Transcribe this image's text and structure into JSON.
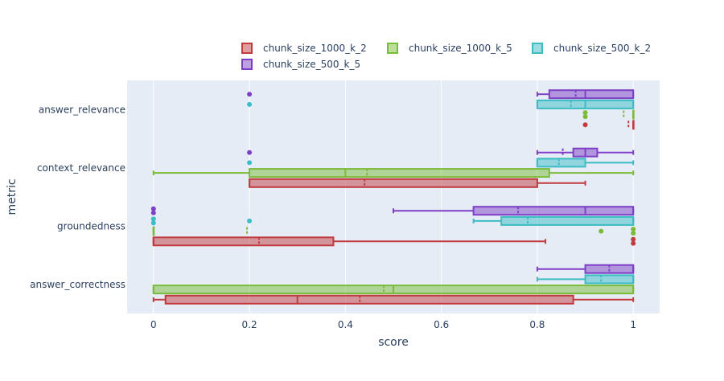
{
  "chart_data": {
    "type": "box",
    "orientation": "horizontal",
    "xlabel": "score",
    "ylabel": "metric",
    "xlim": [
      -0.055,
      1.055
    ],
    "x_ticks": [
      "0",
      "0.2",
      "0.4",
      "0.6",
      "0.8",
      "1"
    ],
    "x_tick_values": [
      0,
      0.2,
      0.4,
      0.6,
      0.8,
      1
    ],
    "categories": [
      "answer_relevance",
      "context_relevance",
      "groundedness",
      "answer_correctness"
    ],
    "grid": true,
    "legend_position": "top",
    "boxmean": true,
    "series": [
      {
        "name": "chunk_size_1000_k_2",
        "color": "#c23b3f",
        "boxes": [
          {
            "min": 1.0,
            "q1": 1.0,
            "median": 1.0,
            "q3": 1.0,
            "max": 1.0,
            "mean": 0.99,
            "outliers": [
              0.9
            ]
          },
          {
            "min": 0.2,
            "q1": 0.2,
            "median": 0.2,
            "q3": 0.8,
            "max": 0.9,
            "mean": 0.44,
            "outliers": []
          },
          {
            "min": 0.0,
            "q1": 0.0,
            "median": 0.0,
            "q3": 0.375,
            "max": 0.817,
            "mean": 0.22,
            "outliers": [
              1.0,
              1.0
            ]
          },
          {
            "min": 0.0,
            "q1": 0.025,
            "median": 0.3,
            "q3": 0.875,
            "max": 1.0,
            "mean": 0.43,
            "outliers": []
          }
        ]
      },
      {
        "name": "chunk_size_1000_k_5",
        "color": "#7bbb3a",
        "boxes": [
          {
            "min": 1.0,
            "q1": 1.0,
            "median": 1.0,
            "q3": 1.0,
            "max": 1.0,
            "mean": 0.98,
            "outliers": [
              0.9,
              0.9
            ]
          },
          {
            "min": 0.0,
            "q1": 0.2,
            "median": 0.4,
            "q3": 0.825,
            "max": 1.0,
            "mean": 0.445,
            "outliers": []
          },
          {
            "min": 0.0,
            "q1": 0.0,
            "median": 0.0,
            "q3": 0.0,
            "max": 0.0,
            "mean": 0.195,
            "outliers": [
              0.933,
              1.0,
              1.0
            ]
          },
          {
            "min": 0.0,
            "q1": 0.0,
            "median": 0.5,
            "q3": 1.0,
            "max": 1.0,
            "mean": 0.48,
            "outliers": []
          }
        ]
      },
      {
        "name": "chunk_size_500_k_2",
        "color": "#3cbcc3",
        "boxes": [
          {
            "min": 0.8,
            "q1": 0.8,
            "median": 0.9,
            "q3": 1.0,
            "max": 1.0,
            "mean": 0.87,
            "outliers": [
              0.2
            ]
          },
          {
            "min": 0.8,
            "q1": 0.8,
            "median": 0.8,
            "q3": 0.9,
            "max": 1.0,
            "mean": 0.845,
            "outliers": [
              0.2
            ]
          },
          {
            "min": 0.667,
            "q1": 0.725,
            "median": 1.0,
            "q3": 1.0,
            "max": 1.0,
            "mean": 0.78,
            "outliers": [
              0.0,
              0.0,
              0.2
            ]
          },
          {
            "min": 0.8,
            "q1": 0.9,
            "median": 1.0,
            "q3": 1.0,
            "max": 1.0,
            "mean": 0.933,
            "outliers": []
          }
        ]
      },
      {
        "name": "chunk_size_500_k_5",
        "color": "#7e3fc6",
        "boxes": [
          {
            "min": 0.8,
            "q1": 0.825,
            "median": 0.9,
            "q3": 1.0,
            "max": 1.0,
            "mean": 0.88,
            "outliers": [
              0.2
            ]
          },
          {
            "min": 0.8,
            "q1": 0.875,
            "median": 0.9,
            "q3": 0.925,
            "max": 1.0,
            "mean": 0.853,
            "outliers": [
              0.2
            ]
          },
          {
            "min": 0.5,
            "q1": 0.667,
            "median": 0.9,
            "q3": 1.0,
            "max": 1.0,
            "mean": 0.76,
            "outliers": [
              0.0,
              0.0
            ]
          },
          {
            "min": 0.8,
            "q1": 0.9,
            "median": 1.0,
            "q3": 1.0,
            "max": 1.0,
            "mean": 0.95,
            "outliers": []
          }
        ]
      }
    ]
  }
}
